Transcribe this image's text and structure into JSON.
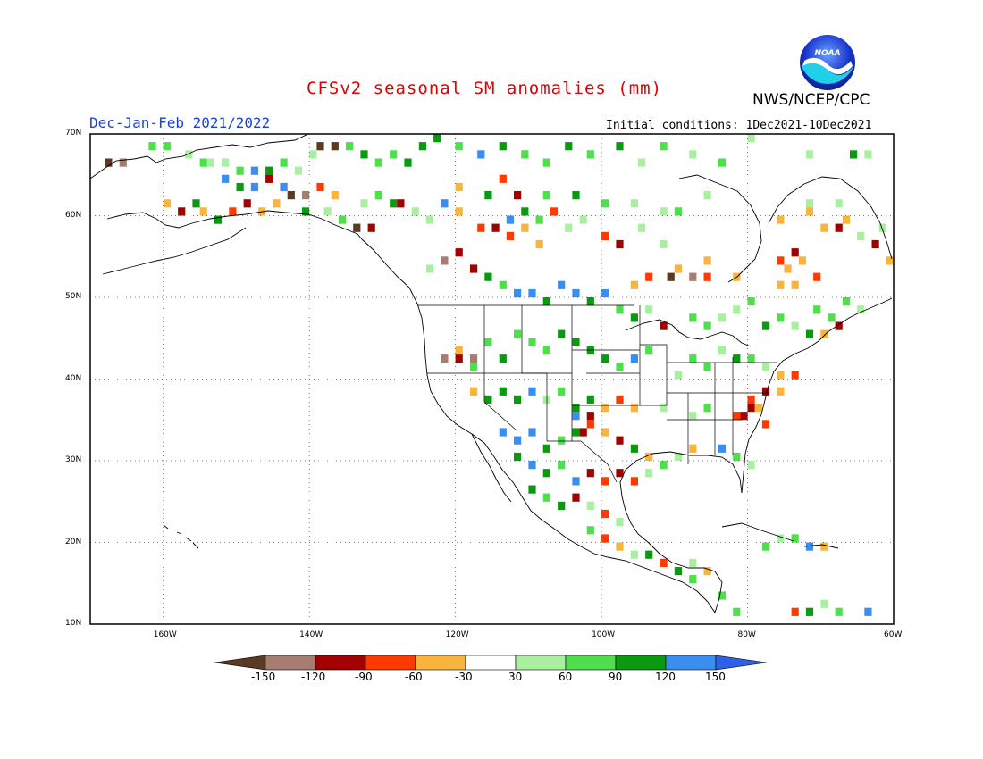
{
  "title": "CFSv2 seasonal SM anomalies (mm)",
  "agency": "NWS/NCEP/CPC",
  "logo_text": "NOAA",
  "season": "Dec-Jan-Feb 2021/2022",
  "initial_conditions": "Initial conditions: 1Dec2021-10Dec2021",
  "map": {
    "lat_range": [
      10,
      70
    ],
    "lon_range": [
      -170,
      -60
    ],
    "lat_ticks": [
      {
        "value": 70,
        "label": "70N"
      },
      {
        "value": 60,
        "label": "60N"
      },
      {
        "value": 50,
        "label": "50N"
      },
      {
        "value": 40,
        "label": "40N"
      },
      {
        "value": 30,
        "label": "30N"
      },
      {
        "value": 20,
        "label": "20N"
      },
      {
        "value": 10,
        "label": "10N"
      }
    ],
    "lon_ticks": [
      {
        "value": -160,
        "label": "160W"
      },
      {
        "value": -140,
        "label": "140W"
      },
      {
        "value": -120,
        "label": "120W"
      },
      {
        "value": -100,
        "label": "100W"
      },
      {
        "value": -80,
        "label": "80W"
      },
      {
        "value": -60,
        "label": "60W"
      }
    ],
    "gridlines": "dotted",
    "cell_size_deg": 1
  },
  "colorbar": {
    "labels": [
      "-150",
      "-120",
      "-90",
      "-60",
      "-30",
      "30",
      "60",
      "90",
      "120",
      "150"
    ],
    "colors": [
      "#5a3a22",
      "#a67d70",
      "#a30000",
      "#ff3a00",
      "#f8b43c",
      "#ffffff",
      "#a8f0a0",
      "#50df4c",
      "#0a9a10",
      "#3a8ef0",
      "#2d5fe8"
    ]
  },
  "chart_data": {
    "type": "heatmap",
    "variable": "SM anomalies (mm)",
    "levels": [
      -150,
      -120,
      -90,
      -60,
      -30,
      30,
      60,
      90,
      120,
      150
    ],
    "cells": [
      [
        -168,
        66,
        0
      ],
      [
        -166,
        66,
        1
      ],
      [
        -162,
        68,
        7
      ],
      [
        -160,
        68,
        7
      ],
      [
        -157,
        67,
        6
      ],
      [
        -155,
        66,
        7
      ],
      [
        -154,
        66,
        6
      ],
      [
        -152,
        66,
        6
      ],
      [
        -150,
        65,
        7
      ],
      [
        -148,
        65,
        9
      ],
      [
        -146,
        65,
        8
      ],
      [
        -144,
        66,
        7
      ],
      [
        -142,
        65,
        6
      ],
      [
        -140,
        67,
        6
      ],
      [
        -139,
        68,
        0
      ],
      [
        -137,
        68,
        0
      ],
      [
        -135,
        68,
        7
      ],
      [
        -133,
        67,
        8
      ],
      [
        -131,
        66,
        7
      ],
      [
        -129,
        67,
        7
      ],
      [
        -127,
        66,
        8
      ],
      [
        -125,
        68,
        8
      ],
      [
        -123,
        69,
        8
      ],
      [
        -120,
        68,
        7
      ],
      [
        -117,
        67,
        9
      ],
      [
        -114,
        68,
        8
      ],
      [
        -111,
        67,
        7
      ],
      [
        -108,
        66,
        7
      ],
      [
        -105,
        68,
        8
      ],
      [
        -102,
        67,
        7
      ],
      [
        -98,
        68,
        8
      ],
      [
        -95,
        66,
        6
      ],
      [
        -92,
        68,
        7
      ],
      [
        -88,
        67,
        6
      ],
      [
        -84,
        66,
        7
      ],
      [
        -80,
        69,
        6
      ],
      [
        -72,
        67,
        6
      ],
      [
        -66,
        67,
        8
      ],
      [
        -64,
        67,
        6
      ],
      [
        -152,
        64,
        9
      ],
      [
        -150,
        63,
        8
      ],
      [
        -148,
        63,
        9
      ],
      [
        -146,
        64,
        2
      ],
      [
        -144,
        63,
        9
      ],
      [
        -143,
        62,
        0
      ],
      [
        -141,
        62,
        1
      ],
      [
        -139,
        63,
        3
      ],
      [
        -137,
        62,
        4
      ],
      [
        -135,
        61,
        5
      ],
      [
        -133,
        61,
        6
      ],
      [
        -131,
        62,
        7
      ],
      [
        -129,
        61,
        8
      ],
      [
        -160,
        61,
        4
      ],
      [
        -158,
        60,
        2
      ],
      [
        -156,
        61,
        8
      ],
      [
        -155,
        60,
        4
      ],
      [
        -153,
        59,
        8
      ],
      [
        -151,
        60,
        3
      ],
      [
        -149,
        61,
        2
      ],
      [
        -147,
        60,
        4
      ],
      [
        -145,
        61,
        4
      ],
      [
        -141,
        60,
        8
      ],
      [
        -138,
        60,
        6
      ],
      [
        -136,
        59,
        7
      ],
      [
        -134,
        58,
        0
      ],
      [
        -132,
        58,
        2
      ],
      [
        -128,
        61,
        2
      ],
      [
        -126,
        60,
        6
      ],
      [
        -124,
        59,
        6
      ],
      [
        -122,
        61,
        9
      ],
      [
        -120,
        60,
        4
      ],
      [
        -118,
        60,
        5
      ],
      [
        -117,
        58,
        3
      ],
      [
        -115,
        58,
        2
      ],
      [
        -113,
        57,
        3
      ],
      [
        -111,
        58,
        4
      ],
      [
        -109,
        56,
        4
      ],
      [
        -113,
        59,
        9
      ],
      [
        -111,
        60,
        8
      ],
      [
        -109,
        59,
        7
      ],
      [
        -107,
        60,
        3
      ],
      [
        -105,
        58,
        6
      ],
      [
        -103,
        59,
        6
      ],
      [
        -120,
        63,
        4
      ],
      [
        -116,
        62,
        8
      ],
      [
        -114,
        64,
        3
      ],
      [
        -112,
        62,
        2
      ],
      [
        -108,
        62,
        7
      ],
      [
        -104,
        62,
        8
      ],
      [
        -100,
        61,
        7
      ],
      [
        -96,
        61,
        6
      ],
      [
        -92,
        60,
        6
      ],
      [
        -90,
        60,
        7
      ],
      [
        -86,
        62,
        6
      ],
      [
        -100,
        57,
        3
      ],
      [
        -98,
        56,
        2
      ],
      [
        -95,
        58,
        6
      ],
      [
        -92,
        56,
        6
      ],
      [
        -88,
        52,
        1
      ],
      [
        -86,
        52,
        3
      ],
      [
        -82,
        52,
        4
      ],
      [
        -76,
        54,
        3
      ],
      [
        -74,
        55,
        2
      ],
      [
        -75,
        53,
        4
      ],
      [
        -73,
        54,
        4
      ],
      [
        -71,
        52,
        3
      ],
      [
        -70,
        58,
        4
      ],
      [
        -68,
        58,
        2
      ],
      [
        -65,
        57,
        6
      ],
      [
        -63,
        56,
        2
      ],
      [
        -61,
        54,
        4
      ],
      [
        -76,
        59,
        4
      ],
      [
        -72,
        60,
        4
      ],
      [
        -67,
        59,
        4
      ],
      [
        -62,
        58,
        6
      ],
      [
        -72,
        61,
        6
      ],
      [
        -68,
        61,
        6
      ],
      [
        -124,
        53,
        6
      ],
      [
        -122,
        54,
        1
      ],
      [
        -120,
        55,
        2
      ],
      [
        -118,
        53,
        2
      ],
      [
        -116,
        52,
        8
      ],
      [
        -114,
        51,
        7
      ],
      [
        -112,
        50,
        9
      ],
      [
        -110,
        50,
        9
      ],
      [
        -108,
        49,
        8
      ],
      [
        -106,
        51,
        9
      ],
      [
        -104,
        50,
        9
      ],
      [
        -102,
        49,
        8
      ],
      [
        -100,
        50,
        9
      ],
      [
        -98,
        48,
        7
      ],
      [
        -96,
        47,
        8
      ],
      [
        -94,
        48,
        6
      ],
      [
        -92,
        46,
        2
      ],
      [
        -90,
        47,
        5
      ],
      [
        -88,
        47,
        7
      ],
      [
        -86,
        46,
        7
      ],
      [
        -84,
        47,
        6
      ],
      [
        -82,
        48,
        6
      ],
      [
        -80,
        49,
        7
      ],
      [
        -78,
        46,
        8
      ],
      [
        -76,
        47,
        7
      ],
      [
        -74,
        46,
        6
      ],
      [
        -72,
        45,
        8
      ],
      [
        -70,
        45,
        4
      ],
      [
        -68,
        46,
        2
      ],
      [
        -71,
        48,
        7
      ],
      [
        -69,
        47,
        7
      ],
      [
        -67,
        49,
        7
      ],
      [
        -65,
        48,
        6
      ],
      [
        -76,
        51,
        4
      ],
      [
        -74,
        51,
        4
      ],
      [
        -96,
        51,
        4
      ],
      [
        -94,
        52,
        3
      ],
      [
        -91,
        52,
        0
      ],
      [
        -90,
        53,
        4
      ],
      [
        -86,
        54,
        4
      ],
      [
        -120,
        43,
        4
      ],
      [
        -118,
        41,
        7
      ],
      [
        -116,
        44,
        7
      ],
      [
        -114,
        42,
        8
      ],
      [
        -112,
        45,
        7
      ],
      [
        -110,
        44,
        7
      ],
      [
        -108,
        43,
        7
      ],
      [
        -106,
        45,
        8
      ],
      [
        -104,
        44,
        8
      ],
      [
        -102,
        43,
        8
      ],
      [
        -100,
        42,
        8
      ],
      [
        -98,
        41,
        7
      ],
      [
        -96,
        42,
        9
      ],
      [
        -94,
        43,
        7
      ],
      [
        -92,
        41,
        5
      ],
      [
        -90,
        40,
        6
      ],
      [
        -88,
        42,
        7
      ],
      [
        -86,
        41,
        7
      ],
      [
        -84,
        43,
        6
      ],
      [
        -82,
        42,
        8
      ],
      [
        -80,
        42,
        7
      ],
      [
        -78,
        41,
        6
      ],
      [
        -76,
        40,
        4
      ],
      [
        -74,
        40,
        3
      ],
      [
        -122,
        42,
        1
      ],
      [
        -120,
        42,
        2
      ],
      [
        -118,
        42,
        1
      ],
      [
        -118,
        38,
        4
      ],
      [
        -116,
        37,
        8
      ],
      [
        -114,
        38,
        8
      ],
      [
        -112,
        37,
        8
      ],
      [
        -110,
        38,
        9
      ],
      [
        -108,
        37,
        6
      ],
      [
        -106,
        38,
        7
      ],
      [
        -104,
        36,
        8
      ],
      [
        -102,
        37,
        8
      ],
      [
        -100,
        36,
        4
      ],
      [
        -98,
        37,
        3
      ],
      [
        -96,
        36,
        4
      ],
      [
        -94,
        37,
        5
      ],
      [
        -92,
        36,
        6
      ],
      [
        -90,
        37,
        5
      ],
      [
        -88,
        35,
        6
      ],
      [
        -86,
        36,
        7
      ],
      [
        -84,
        34,
        5
      ],
      [
        -82,
        35,
        3
      ],
      [
        -80,
        36,
        2
      ],
      [
        -78,
        34,
        3
      ],
      [
        -76,
        38,
        4
      ],
      [
        -78,
        38,
        2
      ],
      [
        -80,
        37,
        3
      ],
      [
        -81,
        35,
        2
      ],
      [
        -79,
        36,
        4
      ],
      [
        -114,
        33,
        9
      ],
      [
        -112,
        32,
        9
      ],
      [
        -110,
        33,
        9
      ],
      [
        -108,
        31,
        8
      ],
      [
        -106,
        32,
        7
      ],
      [
        -104,
        33,
        8
      ],
      [
        -102,
        34,
        3
      ],
      [
        -100,
        33,
        4
      ],
      [
        -98,
        32,
        2
      ],
      [
        -96,
        31,
        8
      ],
      [
        -94,
        30,
        4
      ],
      [
        -92,
        29,
        7
      ],
      [
        -90,
        30,
        6
      ],
      [
        -88,
        31,
        4
      ],
      [
        -86,
        30,
        5
      ],
      [
        -84,
        31,
        9
      ],
      [
        -82,
        30,
        7
      ],
      [
        -80,
        29,
        6
      ],
      [
        -104,
        35,
        9
      ],
      [
        -102,
        35,
        2
      ],
      [
        -103,
        33,
        2
      ],
      [
        -112,
        30,
        8
      ],
      [
        -110,
        29,
        9
      ],
      [
        -108,
        28,
        8
      ],
      [
        -106,
        29,
        7
      ],
      [
        -104,
        27,
        9
      ],
      [
        -102,
        28,
        2
      ],
      [
        -100,
        27,
        3
      ],
      [
        -98,
        28,
        2
      ],
      [
        -96,
        27,
        3
      ],
      [
        -94,
        28,
        6
      ],
      [
        -110,
        26,
        8
      ],
      [
        -108,
        25,
        7
      ],
      [
        -106,
        24,
        8
      ],
      [
        -104,
        25,
        2
      ],
      [
        -102,
        24,
        6
      ],
      [
        -100,
        23,
        3
      ],
      [
        -98,
        22,
        6
      ],
      [
        -102,
        21,
        7
      ],
      [
        -100,
        20,
        3
      ],
      [
        -98,
        19,
        4
      ],
      [
        -96,
        18,
        6
      ],
      [
        -94,
        18,
        8
      ],
      [
        -92,
        17,
        3
      ],
      [
        -90,
        16,
        8
      ],
      [
        -88,
        15,
        7
      ],
      [
        -86,
        14,
        5
      ],
      [
        -84,
        13,
        7
      ],
      [
        -86,
        16,
        4
      ],
      [
        -88,
        17,
        6
      ],
      [
        -82,
        11,
        7
      ],
      [
        -78,
        19,
        7
      ],
      [
        -76,
        20,
        6
      ],
      [
        -74,
        20,
        7
      ],
      [
        -72,
        19,
        9
      ],
      [
        -70,
        19,
        4
      ],
      [
        -74,
        11,
        3
      ],
      [
        -72,
        11,
        8
      ],
      [
        -70,
        12,
        6
      ],
      [
        -68,
        11,
        7
      ],
      [
        -66,
        11,
        5
      ],
      [
        -64,
        11,
        9
      ]
    ]
  }
}
